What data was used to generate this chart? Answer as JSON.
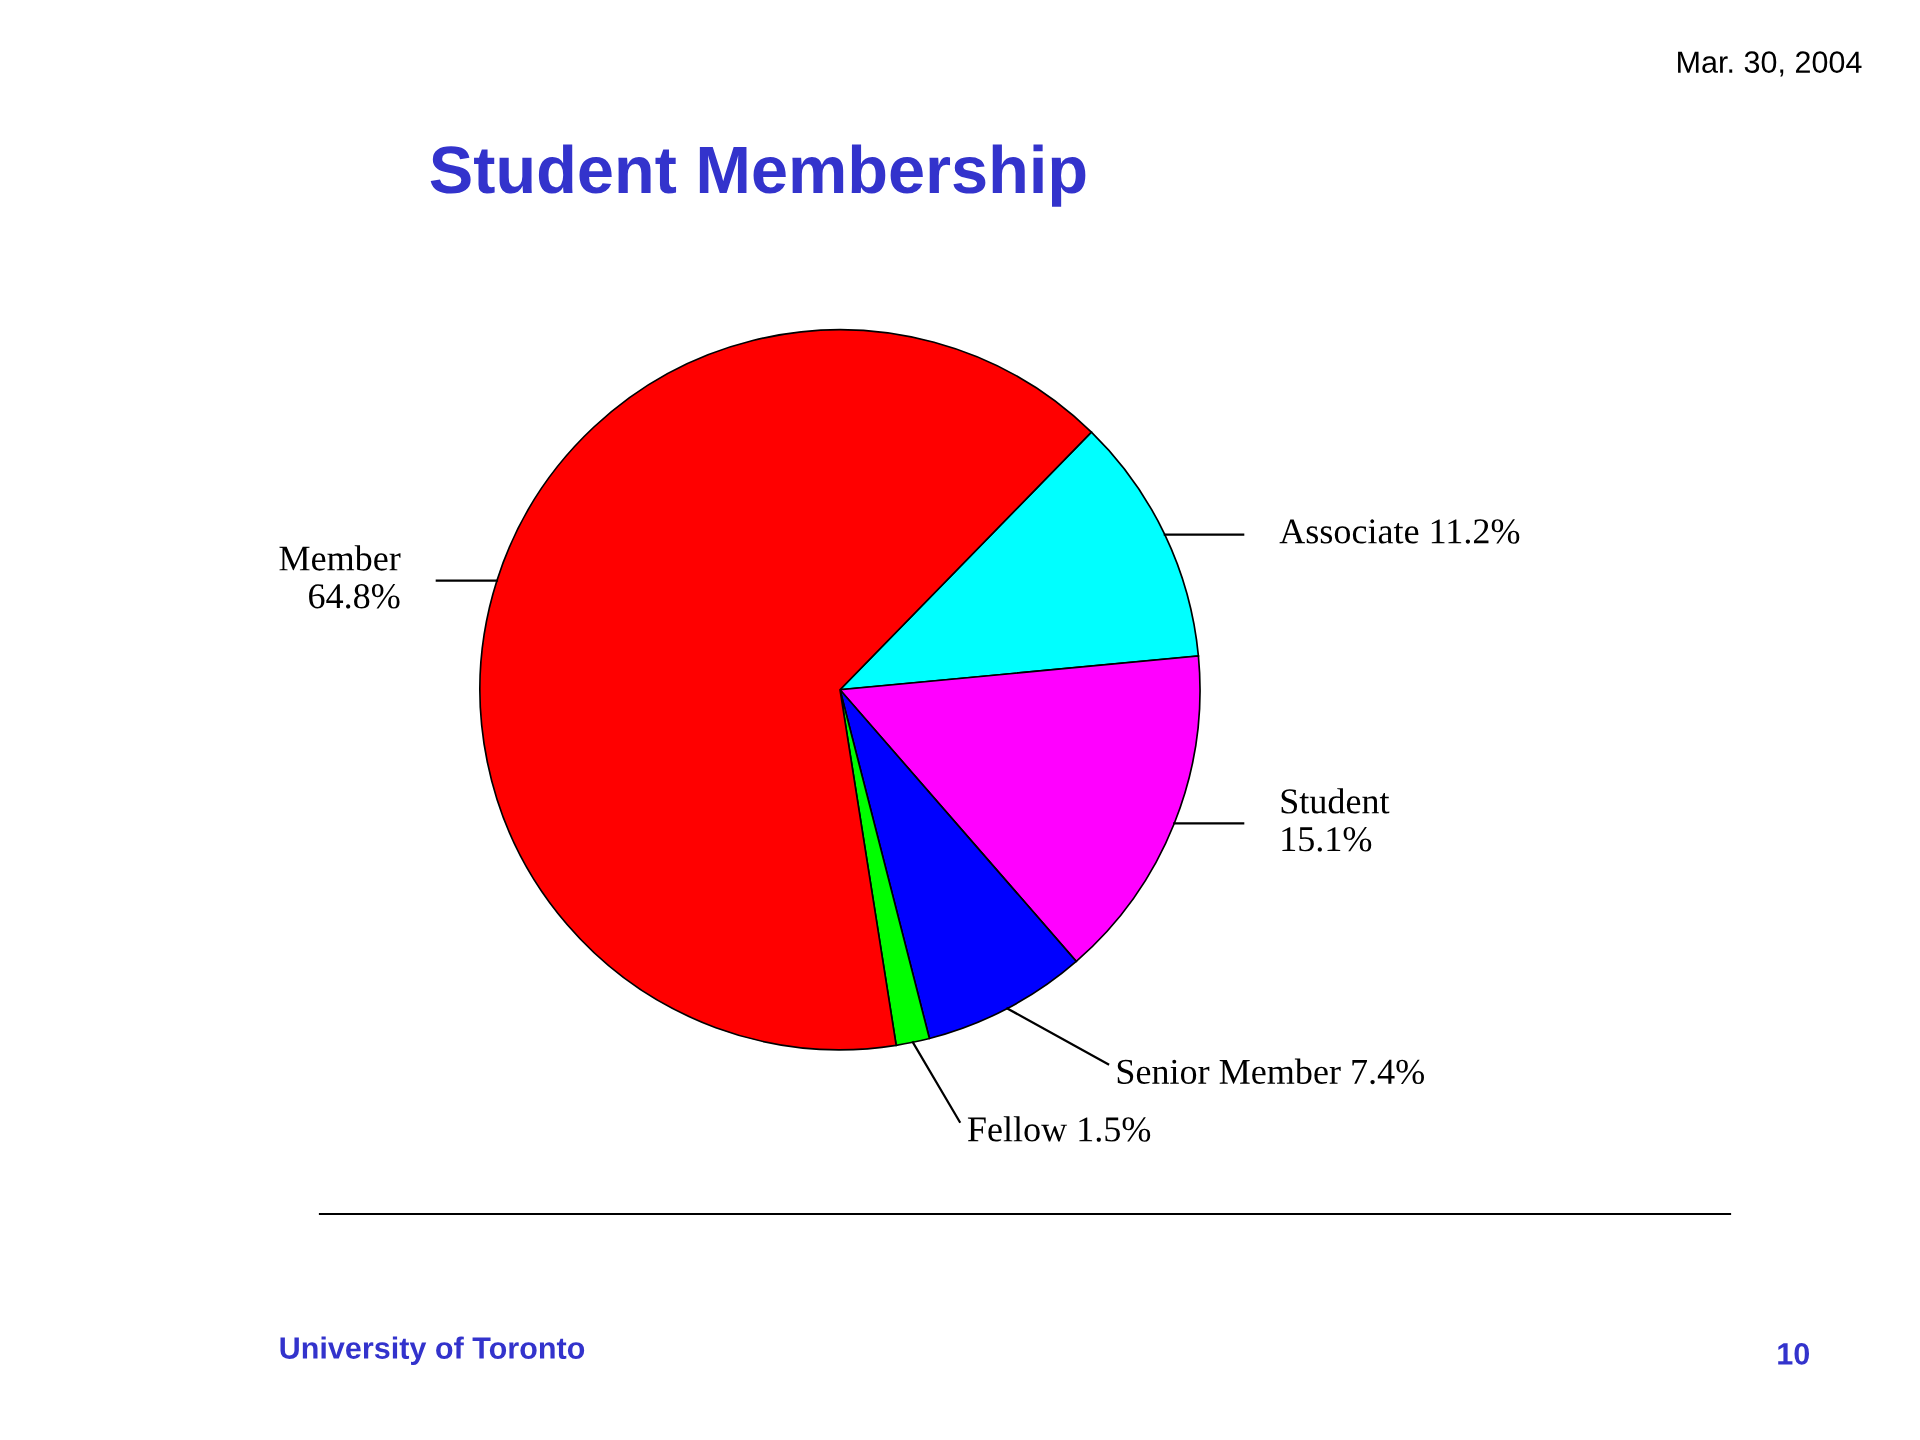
{
  "chart_data": {
    "type": "pie",
    "title": "Student Membership",
    "categories": [
      "Associate",
      "Student",
      "Senior Member",
      "Fellow",
      "Member"
    ],
    "values": [
      11.2,
      15.1,
      7.4,
      1.5,
      64.8
    ],
    "value_labels": [
      "11.2%",
      "15.1%",
      "7.4%",
      "1.5%",
      "64.8%"
    ],
    "colors": [
      "#00ffff",
      "#ff00ff",
      "#0000ff",
      "#00ff00",
      "#ff0000"
    ],
    "annotations": [
      "Mar. 30, 2004",
      "University of Toronto",
      "10"
    ]
  }
}
